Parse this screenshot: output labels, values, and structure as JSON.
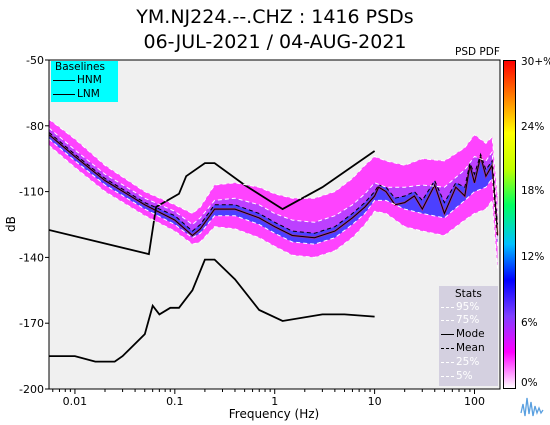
{
  "header": {
    "title_line1": "YM.NJ224.--.CHZ : 1416 PSDs",
    "title_line2": "06-JUL-2021 / 04-AUG-2021",
    "psd_pdf_label": "PSD PDF"
  },
  "colorbar": {
    "ticks": [
      "30+%",
      "24%",
      "18%",
      "12%",
      "6%",
      "0%"
    ],
    "colors": [
      "#ffffff",
      "#ff00ff",
      "#8040ff",
      "#0000ff",
      "#00c0ff",
      "#00ff60",
      "#c0ff00",
      "#ffff00",
      "#ff8000",
      "#ff0000"
    ]
  },
  "baselines": {
    "title": "Baselines",
    "items": [
      "HNM",
      "LNM"
    ],
    "background": "#00ffff"
  },
  "stats": {
    "title": "Stats",
    "items": [
      {
        "label": "95%",
        "color": "#ffffff",
        "style": "dashed"
      },
      {
        "label": "75%",
        "color": "#ffffff",
        "style": "dashed"
      },
      {
        "label": "Mode",
        "color": "#000000",
        "style": "solid"
      },
      {
        "label": "Mean",
        "color": "#000000",
        "style": "dashed"
      },
      {
        "label": "25%",
        "color": "#ffffff",
        "style": "dashed"
      },
      {
        "label": "5%",
        "color": "#ffffff",
        "style": "dashed"
      }
    ]
  },
  "chart_data": {
    "type": "heatmap",
    "title": "YM.NJ224.--.CHZ : 1416 PSDs",
    "subtitle": "06-JUL-2021 / 04-AUG-2021",
    "xlabel": "Frequency (Hz)",
    "ylabel": "dB",
    "x_scale": "log",
    "xlim": [
      0.0055,
      180
    ],
    "ylim": [
      -200,
      -50
    ],
    "x_ticks": [
      0.01,
      0.1,
      1,
      10,
      100
    ],
    "x_tick_labels": [
      "0.01",
      "0.1",
      "1",
      "10",
      "100"
    ],
    "y_ticks": [
      -50,
      -80,
      -110,
      -140,
      -170,
      -200
    ],
    "y_tick_labels": [
      "-50",
      "-80",
      "-110",
      "-140",
      "-170",
      "-200"
    ],
    "grid": false,
    "colorbar_range_percent": [
      0,
      30
    ],
    "series": [
      {
        "name": "HNM",
        "color": "#000000",
        "style": "solid",
        "x": [
          0.0055,
          0.055,
          0.065,
          0.11,
          0.13,
          0.2,
          0.25,
          0.5,
          1.2,
          3,
          5,
          10
        ],
        "y": [
          -127.5,
          -138.5,
          -117,
          -111,
          -103,
          -97,
          -97,
          -107,
          -118,
          -108,
          -101,
          -91.5
        ]
      },
      {
        "name": "LNM",
        "color": "#000000",
        "style": "solid",
        "x": [
          0.0055,
          0.01,
          0.016,
          0.025,
          0.03,
          0.05,
          0.06,
          0.07,
          0.09,
          0.11,
          0.15,
          0.2,
          0.25,
          0.4,
          0.7,
          1.2,
          3,
          5,
          10
        ],
        "y": [
          -185,
          -185,
          -187.5,
          -187.5,
          -185,
          -175,
          -162,
          -166,
          -163,
          -163,
          -155,
          -141,
          -141,
          -150,
          -164,
          -169,
          -166,
          -166,
          -167
        ]
      },
      {
        "name": "Mode",
        "color": "#000000",
        "style": "solid",
        "x": [
          0.0055,
          0.01,
          0.02,
          0.05,
          0.1,
          0.15,
          0.18,
          0.25,
          0.4,
          0.7,
          1,
          1.5,
          2.5,
          4,
          6,
          8,
          10,
          11,
          13,
          16,
          20,
          25,
          30,
          40,
          50,
          65,
          80,
          90,
          100,
          115,
          130,
          150,
          170
        ],
        "y": [
          -84,
          -94,
          -105,
          -116,
          -123,
          -130,
          -127,
          -118,
          -118,
          -122,
          -126,
          -130,
          -131,
          -128,
          -122,
          -117,
          -112,
          -108,
          -110,
          -116,
          -115,
          -112,
          -118,
          -107,
          -120,
          -108,
          -112,
          -98,
          -106,
          -94,
          -103,
          -98,
          -130
        ]
      },
      {
        "name": "Mean",
        "color": "#000000",
        "style": "dashed",
        "x": [
          0.0055,
          0.01,
          0.02,
          0.05,
          0.1,
          0.15,
          0.18,
          0.25,
          0.4,
          0.7,
          1,
          1.5,
          2.5,
          4,
          6,
          8,
          10,
          11,
          13,
          16,
          20,
          25,
          30,
          40,
          50,
          65,
          80,
          90,
          100,
          115,
          130,
          150,
          170
        ],
        "y": [
          -83,
          -93,
          -104,
          -115,
          -121,
          -128,
          -125,
          -116,
          -116,
          -120,
          -124,
          -128,
          -129,
          -126,
          -120,
          -115,
          -110,
          -107,
          -108,
          -113,
          -112,
          -110,
          -114,
          -105,
          -115,
          -106,
          -108,
          -97,
          -102,
          -93,
          -100,
          -96,
          -125
        ]
      },
      {
        "name": "95%",
        "color": "#ffffff",
        "style": "dashed",
        "x": [
          0.0055,
          0.01,
          0.02,
          0.05,
          0.1,
          0.15,
          0.18,
          0.25,
          0.4,
          0.7,
          1,
          1.5,
          2.5,
          4,
          6,
          8,
          10,
          13,
          20,
          30,
          50,
          80,
          100,
          130,
          150,
          170
        ],
        "y": [
          -77,
          -86,
          -98,
          -110,
          -116,
          -120,
          -117,
          -107,
          -106,
          -108,
          -111,
          -113,
          -113,
          -110,
          -104,
          -98,
          -94,
          -96,
          -98,
          -95,
          -96,
          -90,
          -84,
          -88,
          -85,
          -112
        ]
      },
      {
        "name": "75%",
        "color": "#ffffff",
        "style": "dashed",
        "x": [
          0.0055,
          0.01,
          0.02,
          0.05,
          0.1,
          0.15,
          0.18,
          0.25,
          0.4,
          0.7,
          1,
          1.5,
          2.5,
          4,
          6,
          8,
          10,
          13,
          20,
          30,
          50,
          80,
          100,
          130,
          150,
          170
        ],
        "y": [
          -81,
          -91,
          -102,
          -113,
          -119,
          -125,
          -122,
          -114,
          -113,
          -116,
          -120,
          -123,
          -124,
          -121,
          -116,
          -111,
          -106,
          -108,
          -108,
          -107,
          -108,
          -100,
          -94,
          -96,
          -92,
          -120
        ]
      },
      {
        "name": "25%",
        "color": "#ffffff",
        "style": "dashed",
        "x": [
          0.0055,
          0.01,
          0.02,
          0.05,
          0.1,
          0.15,
          0.18,
          0.25,
          0.4,
          0.7,
          1,
          1.5,
          2.5,
          4,
          6,
          8,
          10,
          13,
          20,
          30,
          50,
          80,
          100,
          130,
          150,
          170
        ],
        "y": [
          -86,
          -96,
          -107,
          -118,
          -125,
          -131,
          -129,
          -121,
          -121,
          -125,
          -129,
          -133,
          -134,
          -131,
          -125,
          -120,
          -114,
          -114,
          -118,
          -120,
          -122,
          -114,
          -110,
          -108,
          -104,
          -135
        ]
      },
      {
        "name": "5%",
        "color": "#ffffff",
        "style": "dashed",
        "x": [
          0.0055,
          0.01,
          0.02,
          0.05,
          0.1,
          0.15,
          0.18,
          0.25,
          0.4,
          0.7,
          1,
          1.5,
          2.5,
          4,
          6,
          8,
          10,
          13,
          20,
          30,
          50,
          80,
          100,
          130,
          150,
          170
        ],
        "y": [
          -89,
          -99,
          -110,
          -121,
          -128,
          -134,
          -133,
          -126,
          -127,
          -131,
          -135,
          -139,
          -140,
          -137,
          -131,
          -125,
          -119,
          -120,
          -126,
          -128,
          -130,
          -123,
          -120,
          -118,
          -114,
          -145
        ]
      }
    ]
  }
}
